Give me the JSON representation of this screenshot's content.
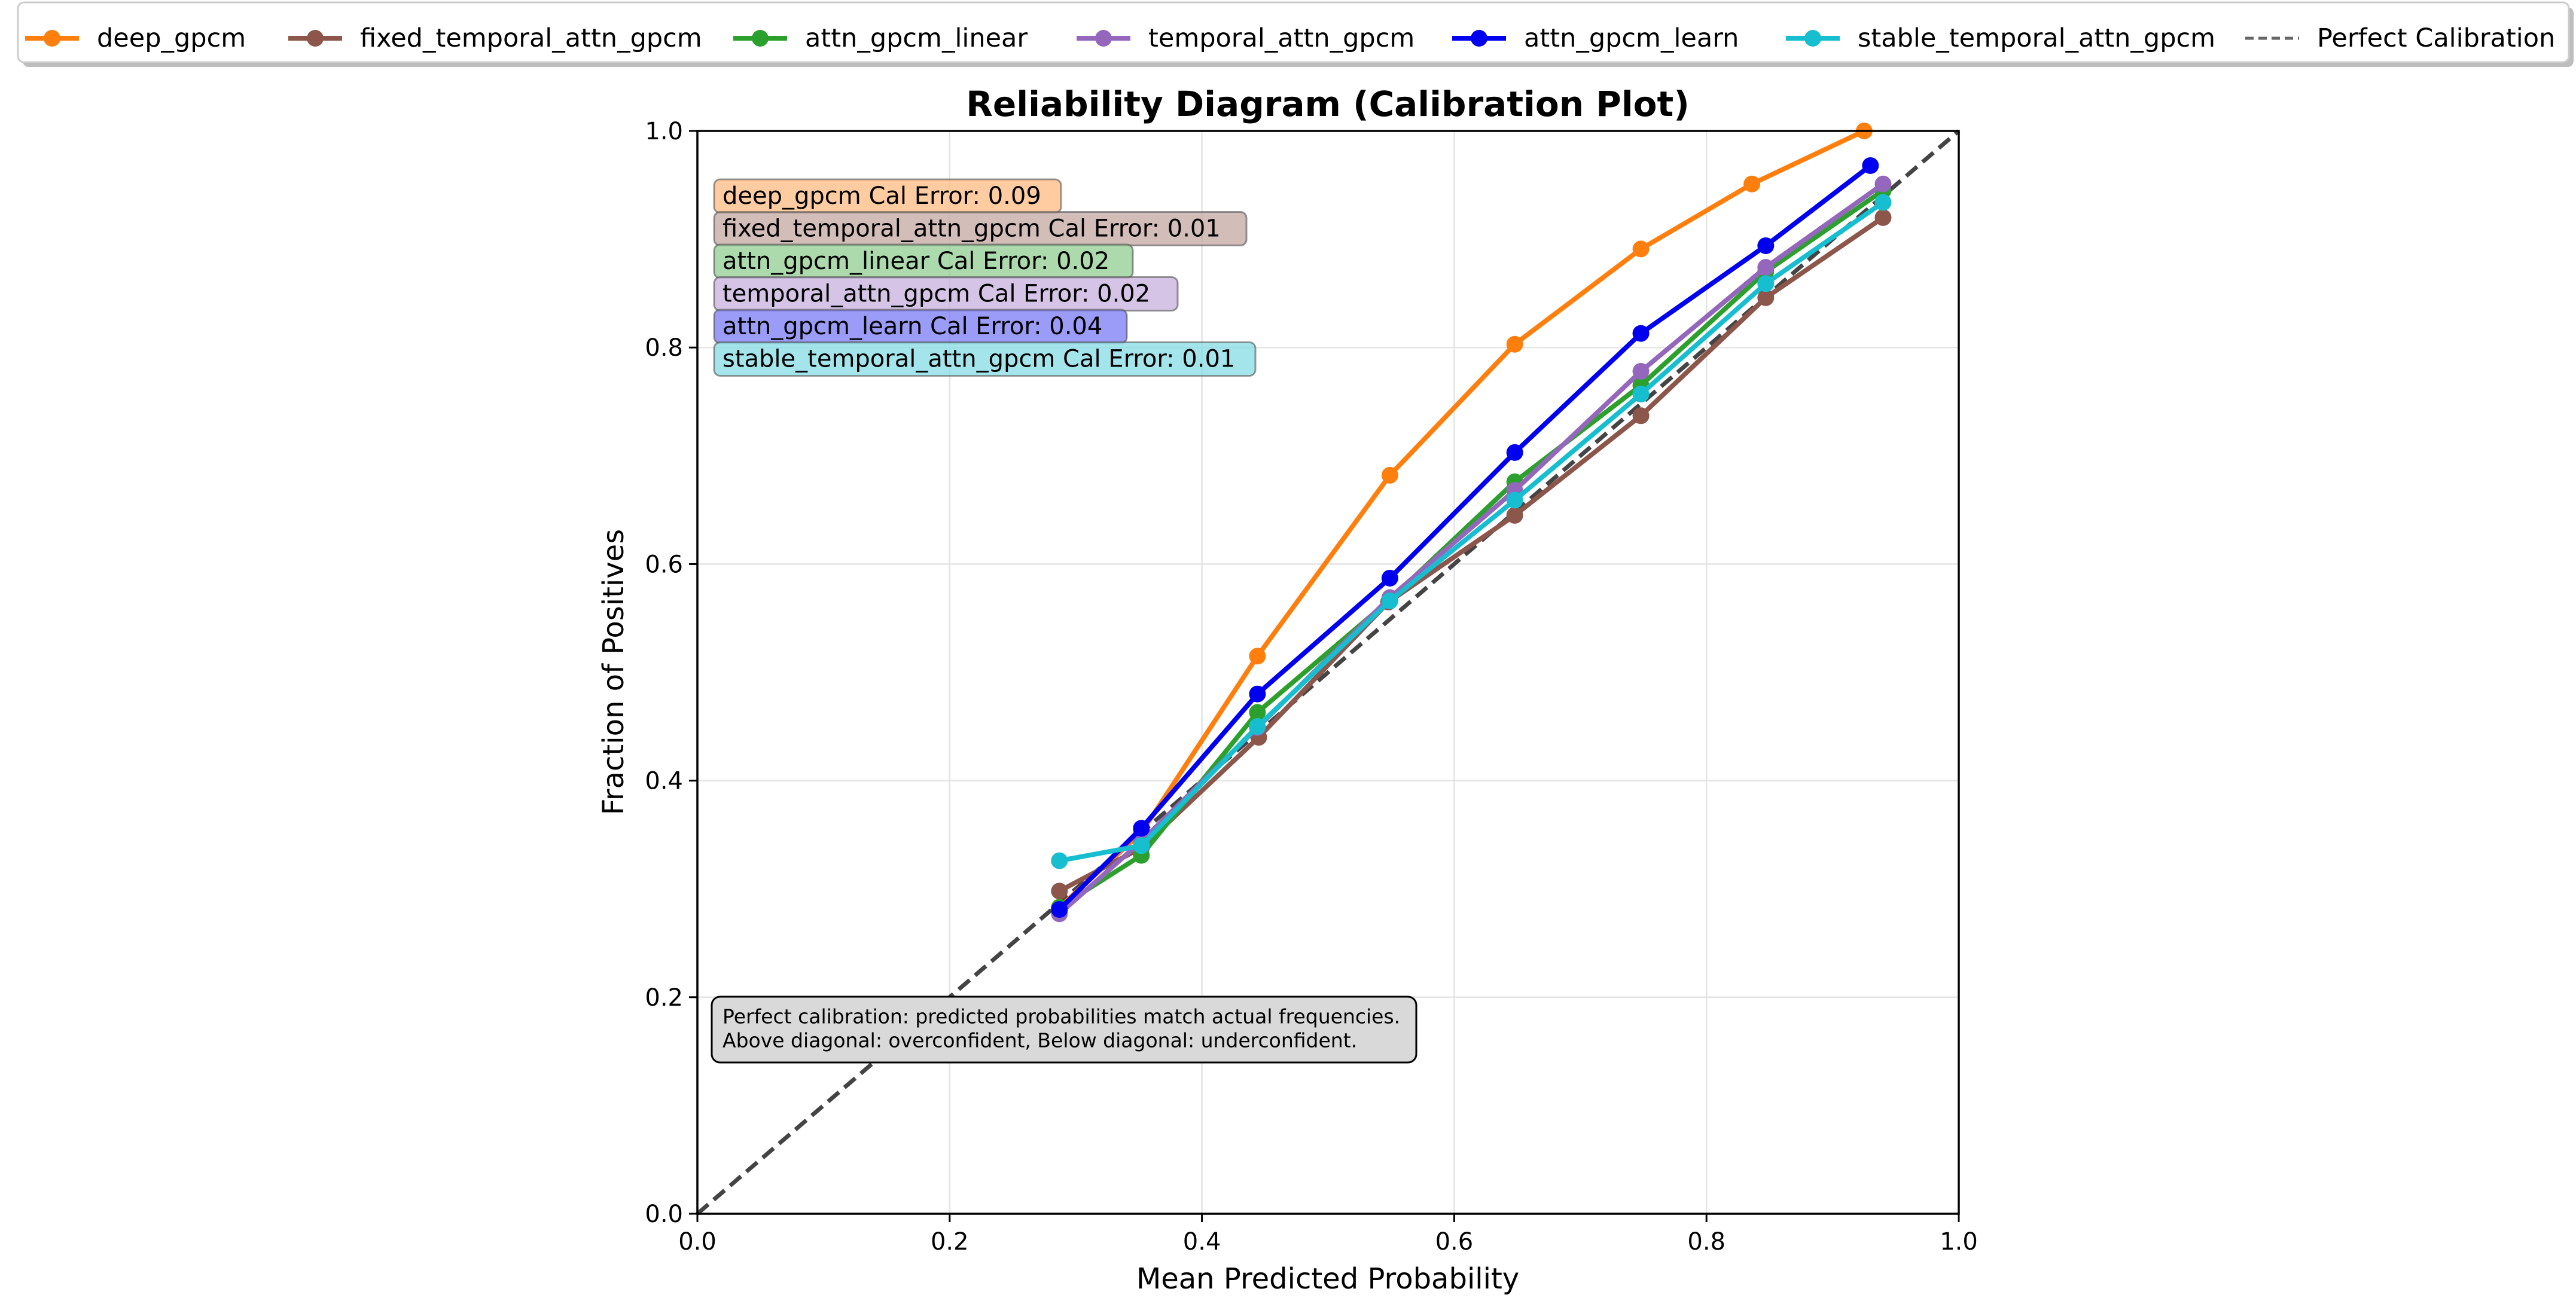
{
  "chart_data": {
    "type": "line",
    "title": "Reliability Diagram (Calibration Plot)",
    "xlabel": "Mean Predicted Probability",
    "ylabel": "Fraction of Positives",
    "xlim": [
      0,
      1
    ],
    "ylim": [
      0,
      1
    ],
    "xticks": [
      "0.0",
      "0.2",
      "0.4",
      "0.6",
      "0.8",
      "1.0"
    ],
    "yticks": [
      "0.0",
      "0.2",
      "0.4",
      "0.6",
      "0.8",
      "1.0"
    ],
    "grid": true,
    "legend_position": "top (above plot)",
    "reference_line": {
      "name": "Perfect Calibration",
      "x": [
        0,
        1
      ],
      "y": [
        0,
        1
      ],
      "color": "#444444",
      "style": "dashed"
    },
    "series": [
      {
        "name": "deep_gpcm",
        "color": "#ff7f0e",
        "x": [
          0.287,
          0.352,
          0.444,
          0.549,
          0.648,
          0.748,
          0.836,
          0.925
        ],
        "y": [
          0.283,
          0.352,
          0.515,
          0.682,
          0.803,
          0.891,
          0.951,
          1.0
        ]
      },
      {
        "name": "fixed_temporal_attn_gpcm",
        "color": "#8c564b",
        "x": [
          0.287,
          0.352,
          0.445,
          0.548,
          0.648,
          0.748,
          0.847,
          0.94
        ],
        "y": [
          0.298,
          0.338,
          0.44,
          0.565,
          0.645,
          0.737,
          0.846,
          0.92
        ]
      },
      {
        "name": "attn_gpcm_linear",
        "color": "#2ca02c",
        "x": [
          0.287,
          0.352,
          0.444,
          0.549,
          0.648,
          0.748,
          0.847,
          0.94
        ],
        "y": [
          0.283,
          0.331,
          0.463,
          0.567,
          0.676,
          0.765,
          0.87,
          0.945
        ]
      },
      {
        "name": "temporal_attn_gpcm",
        "color": "#9467bd",
        "x": [
          0.287,
          0.352,
          0.444,
          0.549,
          0.648,
          0.748,
          0.847,
          0.94
        ],
        "y": [
          0.277,
          0.344,
          0.449,
          0.569,
          0.668,
          0.778,
          0.874,
          0.951
        ]
      },
      {
        "name": "attn_gpcm_learn",
        "color": "#0000ee",
        "x": [
          0.287,
          0.352,
          0.444,
          0.549,
          0.648,
          0.748,
          0.847,
          0.93
        ],
        "y": [
          0.281,
          0.356,
          0.48,
          0.587,
          0.703,
          0.813,
          0.894,
          0.968
        ]
      },
      {
        "name": "stable_temporal_attn_gpcm",
        "color": "#17becf",
        "x": [
          0.287,
          0.352,
          0.444,
          0.549,
          0.648,
          0.748,
          0.847,
          0.94
        ],
        "y": [
          0.326,
          0.34,
          0.45,
          0.566,
          0.659,
          0.757,
          0.859,
          0.934
        ]
      }
    ],
    "calibration_errors": [
      {
        "label": "deep_gpcm Cal Error: 0.09",
        "color": "#ffbe86"
      },
      {
        "label": "fixed_temporal_attn_gpcm Cal Error: 0.01",
        "color": "#c6aba5"
      },
      {
        "label": "attn_gpcm_linear Cal Error: 0.02",
        "color": "#95d095"
      },
      {
        "label": "temporal_attn_gpcm Cal Error: 0.02",
        "color": "#c9b3de"
      },
      {
        "label": "attn_gpcm_learn Cal Error: 0.04",
        "color": "#7f7ff6"
      },
      {
        "label": "stable_temporal_attn_gpcm Cal Error: 0.01",
        "color": "#8bdee7"
      }
    ],
    "note": [
      "Perfect calibration: predicted probabilities match actual frequencies.",
      "Above diagonal: overconfident, Below diagonal: underconfident."
    ]
  }
}
